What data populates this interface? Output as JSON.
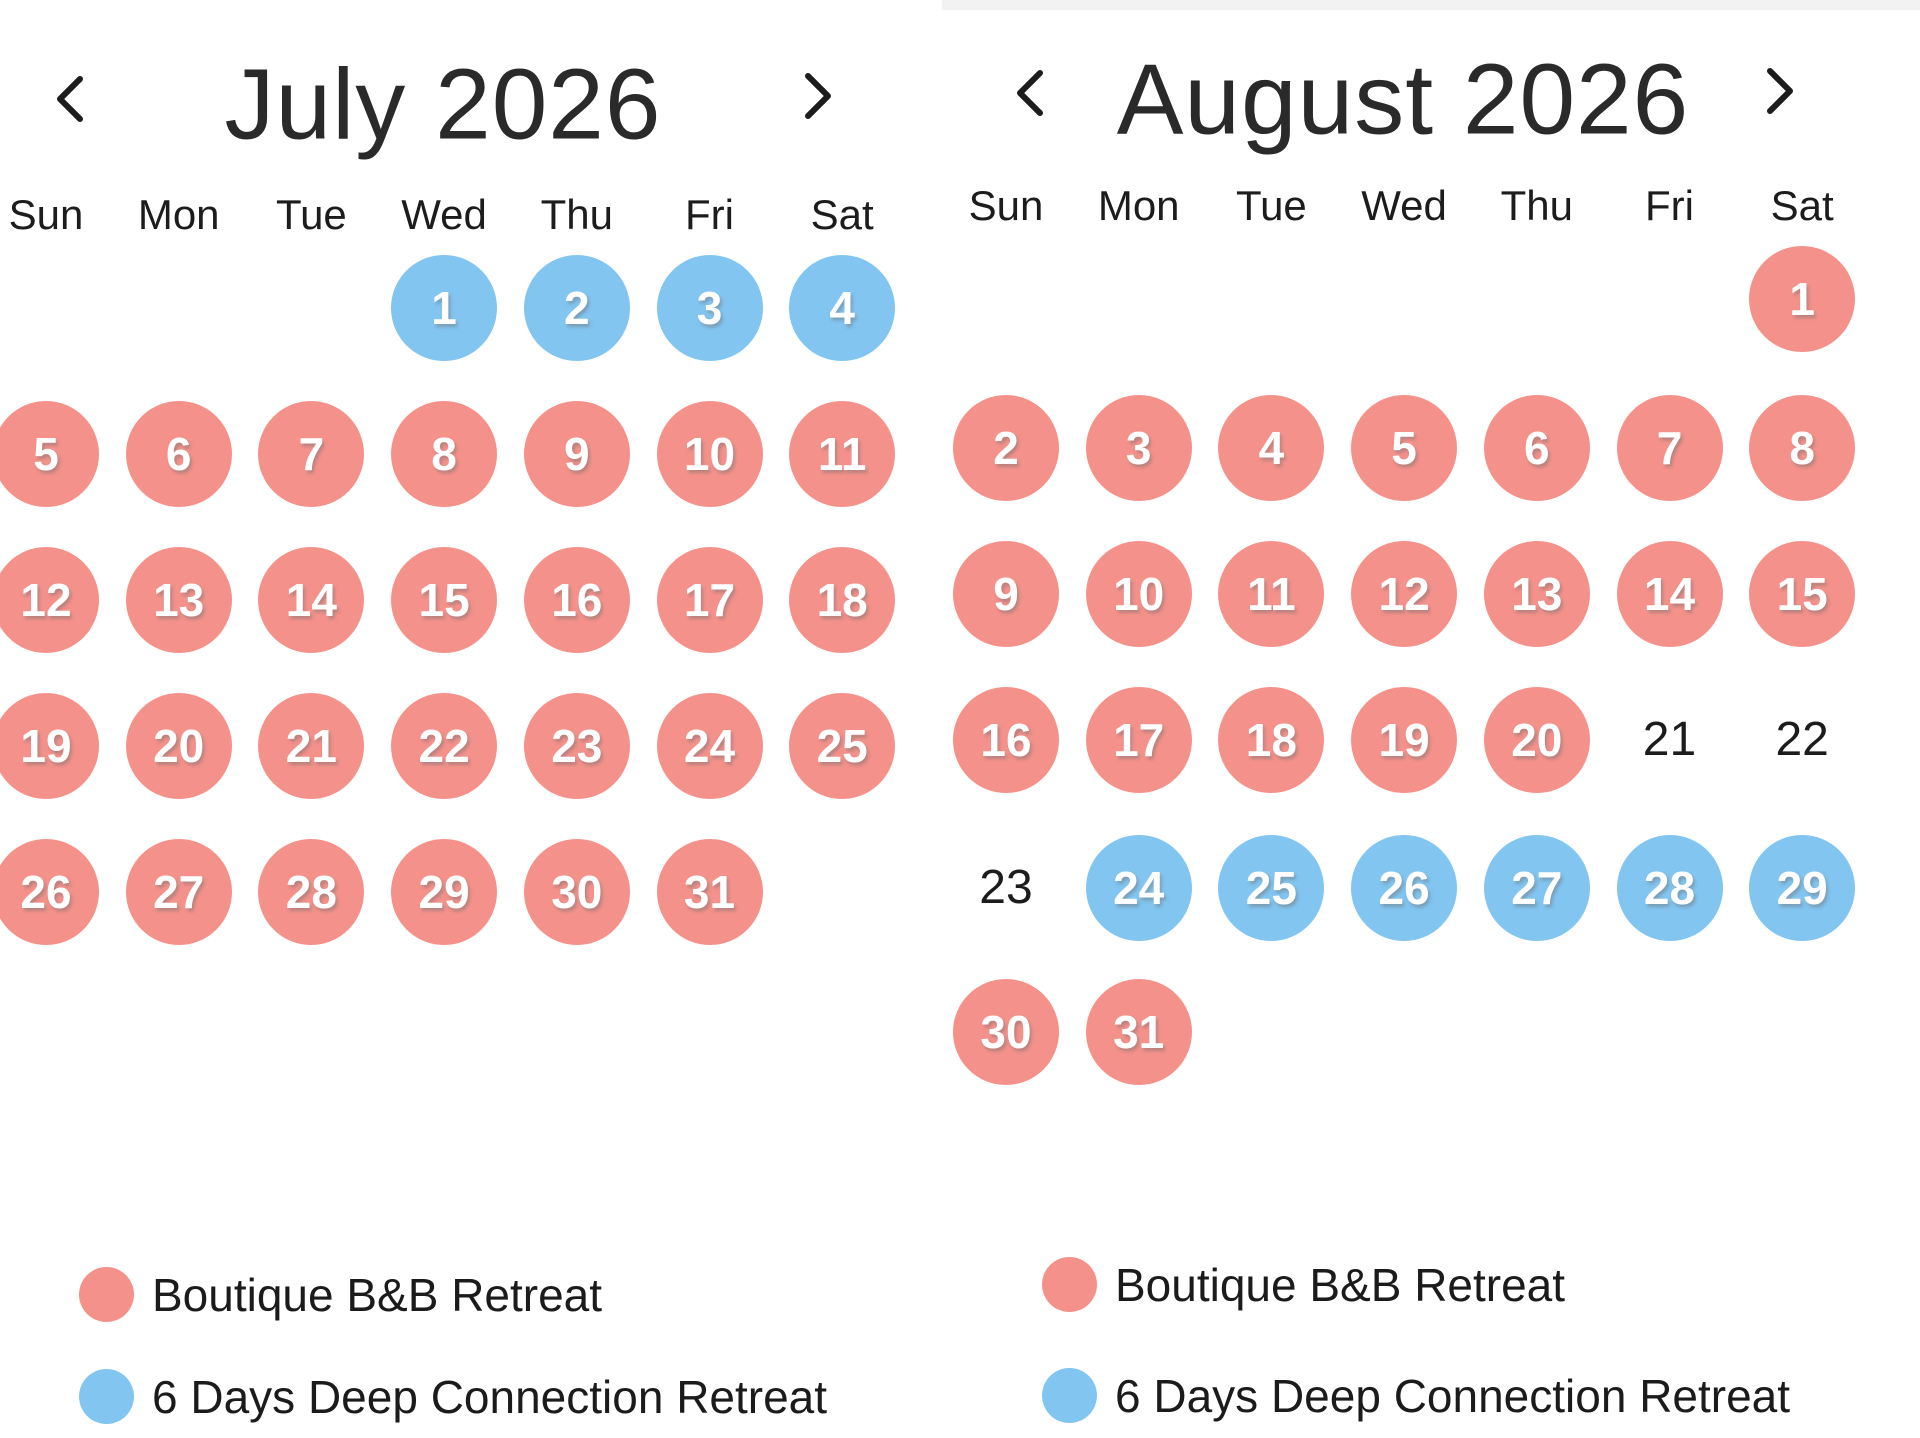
{
  "top_strip": {
    "color": "#f2f2f2"
  },
  "colors": {
    "pink": "#F5918B",
    "blue": "#82C5F1",
    "text_dark": "#1c1c1c",
    "day_number": "#ffffff"
  },
  "icons": {
    "prev": "chevron-left-icon",
    "next": "chevron-right-icon"
  },
  "months": [
    {
      "title": "July 2026",
      "weekdays": [
        "Sun",
        "Mon",
        "Tue",
        "Wed",
        "Thu",
        "Fri",
        "Sat"
      ],
      "days": [
        {
          "n": "1",
          "row": 0,
          "col": 3,
          "type": "blue"
        },
        {
          "n": "2",
          "row": 0,
          "col": 4,
          "type": "blue"
        },
        {
          "n": "3",
          "row": 0,
          "col": 5,
          "type": "blue"
        },
        {
          "n": "4",
          "row": 0,
          "col": 6,
          "type": "blue"
        },
        {
          "n": "5",
          "row": 1,
          "col": 0,
          "type": "pink"
        },
        {
          "n": "6",
          "row": 1,
          "col": 1,
          "type": "pink"
        },
        {
          "n": "7",
          "row": 1,
          "col": 2,
          "type": "pink"
        },
        {
          "n": "8",
          "row": 1,
          "col": 3,
          "type": "pink"
        },
        {
          "n": "9",
          "row": 1,
          "col": 4,
          "type": "pink"
        },
        {
          "n": "10",
          "row": 1,
          "col": 5,
          "type": "pink"
        },
        {
          "n": "11",
          "row": 1,
          "col": 6,
          "type": "pink"
        },
        {
          "n": "12",
          "row": 2,
          "col": 0,
          "type": "pink"
        },
        {
          "n": "13",
          "row": 2,
          "col": 1,
          "type": "pink"
        },
        {
          "n": "14",
          "row": 2,
          "col": 2,
          "type": "pink"
        },
        {
          "n": "15",
          "row": 2,
          "col": 3,
          "type": "pink"
        },
        {
          "n": "16",
          "row": 2,
          "col": 4,
          "type": "pink"
        },
        {
          "n": "17",
          "row": 2,
          "col": 5,
          "type": "pink"
        },
        {
          "n": "18",
          "row": 2,
          "col": 6,
          "type": "pink"
        },
        {
          "n": "19",
          "row": 3,
          "col": 0,
          "type": "pink"
        },
        {
          "n": "20",
          "row": 3,
          "col": 1,
          "type": "pink"
        },
        {
          "n": "21",
          "row": 3,
          "col": 2,
          "type": "pink"
        },
        {
          "n": "22",
          "row": 3,
          "col": 3,
          "type": "pink"
        },
        {
          "n": "23",
          "row": 3,
          "col": 4,
          "type": "pink"
        },
        {
          "n": "24",
          "row": 3,
          "col": 5,
          "type": "pink"
        },
        {
          "n": "25",
          "row": 3,
          "col": 6,
          "type": "pink"
        },
        {
          "n": "26",
          "row": 4,
          "col": 0,
          "type": "pink"
        },
        {
          "n": "27",
          "row": 4,
          "col": 1,
          "type": "pink"
        },
        {
          "n": "28",
          "row": 4,
          "col": 2,
          "type": "pink"
        },
        {
          "n": "29",
          "row": 4,
          "col": 3,
          "type": "pink"
        },
        {
          "n": "30",
          "row": 4,
          "col": 4,
          "type": "pink"
        },
        {
          "n": "31",
          "row": 4,
          "col": 5,
          "type": "pink"
        }
      ],
      "legend": [
        {
          "type": "pink",
          "label": "Boutique B&B Retreat"
        },
        {
          "type": "blue",
          "label": "6 Days Deep Connection Retreat"
        }
      ]
    },
    {
      "title": "August 2026",
      "weekdays": [
        "Sun",
        "Mon",
        "Tue",
        "Wed",
        "Thu",
        "Fri",
        "Sat"
      ],
      "days": [
        {
          "n": "1",
          "row": 0,
          "col": 6,
          "type": "pink"
        },
        {
          "n": "2",
          "row": 1,
          "col": 0,
          "type": "pink"
        },
        {
          "n": "3",
          "row": 1,
          "col": 1,
          "type": "pink"
        },
        {
          "n": "4",
          "row": 1,
          "col": 2,
          "type": "pink"
        },
        {
          "n": "5",
          "row": 1,
          "col": 3,
          "type": "pink"
        },
        {
          "n": "6",
          "row": 1,
          "col": 4,
          "type": "pink"
        },
        {
          "n": "7",
          "row": 1,
          "col": 5,
          "type": "pink"
        },
        {
          "n": "8",
          "row": 1,
          "col": 6,
          "type": "pink"
        },
        {
          "n": "9",
          "row": 2,
          "col": 0,
          "type": "pink"
        },
        {
          "n": "10",
          "row": 2,
          "col": 1,
          "type": "pink"
        },
        {
          "n": "11",
          "row": 2,
          "col": 2,
          "type": "pink"
        },
        {
          "n": "12",
          "row": 2,
          "col": 3,
          "type": "pink"
        },
        {
          "n": "13",
          "row": 2,
          "col": 4,
          "type": "pink"
        },
        {
          "n": "14",
          "row": 2,
          "col": 5,
          "type": "pink"
        },
        {
          "n": "15",
          "row": 2,
          "col": 6,
          "type": "pink"
        },
        {
          "n": "16",
          "row": 3,
          "col": 0,
          "type": "pink"
        },
        {
          "n": "17",
          "row": 3,
          "col": 1,
          "type": "pink"
        },
        {
          "n": "18",
          "row": 3,
          "col": 2,
          "type": "pink"
        },
        {
          "n": "19",
          "row": 3,
          "col": 3,
          "type": "pink"
        },
        {
          "n": "20",
          "row": 3,
          "col": 4,
          "type": "pink"
        },
        {
          "n": "21",
          "row": 3,
          "col": 5,
          "type": "plain"
        },
        {
          "n": "22",
          "row": 3,
          "col": 6,
          "type": "plain"
        },
        {
          "n": "23",
          "row": 4,
          "col": 0,
          "type": "plain"
        },
        {
          "n": "24",
          "row": 4,
          "col": 1,
          "type": "blue"
        },
        {
          "n": "25",
          "row": 4,
          "col": 2,
          "type": "blue"
        },
        {
          "n": "26",
          "row": 4,
          "col": 3,
          "type": "blue"
        },
        {
          "n": "27",
          "row": 4,
          "col": 4,
          "type": "blue"
        },
        {
          "n": "28",
          "row": 4,
          "col": 5,
          "type": "blue"
        },
        {
          "n": "29",
          "row": 4,
          "col": 6,
          "type": "blue"
        },
        {
          "n": "30",
          "row": 5,
          "col": 0,
          "type": "pink"
        },
        {
          "n": "31",
          "row": 5,
          "col": 1,
          "type": "pink"
        }
      ],
      "legend": [
        {
          "type": "pink",
          "label": "Boutique B&B Retreat"
        },
        {
          "type": "blue",
          "label": "6 Days Deep Connection Retreat"
        }
      ]
    }
  ]
}
